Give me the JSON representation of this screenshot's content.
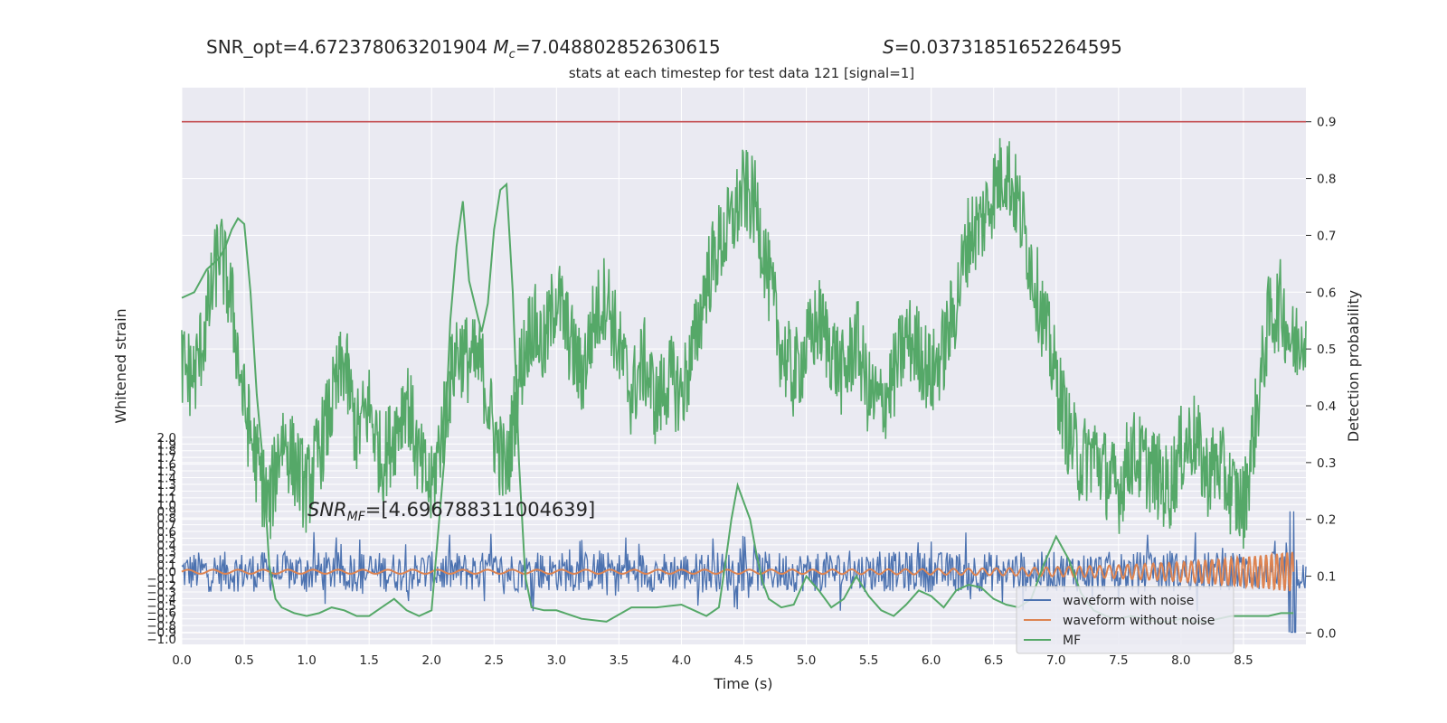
{
  "header": {
    "snr_opt": "SNR_opt=4.672378063201904",
    "mc": "M",
    "mc_sub": "c",
    "mc_value": "=7.048802852630615",
    "s": "S",
    "s_value": "=0.03731851652264595",
    "title": "stats at each timestep for test data 121 [signal=1]"
  },
  "annotation": {
    "snr_mf_prefix": "SNR",
    "snr_mf_sub": "MF",
    "snr_mf_value": "=[4.696788311004639]"
  },
  "chart_data": {
    "type": "line",
    "title": "stats at each timestep for test data 121 [signal=1]",
    "xlabel": "Time (s)",
    "ylabel_left": "Whitened strain",
    "ylabel_right": "Detection probability",
    "xlim": [
      0.0,
      9.0
    ],
    "ylim_left": [
      -1.08,
      7.2
    ],
    "ylim_right": [
      -0.02,
      0.96
    ],
    "x_ticks": [
      "0.0",
      "0.5",
      "1.0",
      "1.5",
      "2.0",
      "2.5",
      "3.0",
      "3.5",
      "4.0",
      "4.5",
      "5.0",
      "5.5",
      "6.0",
      "6.5",
      "7.0",
      "7.5",
      "8.0",
      "8.5"
    ],
    "y_ticks_left": [
      "2.0",
      "1.9",
      "1.8",
      "1.7",
      "1.6",
      "1.5",
      "1.4",
      "1.3",
      "1.2",
      "1.1",
      "1.0",
      "0.9",
      "0.8",
      "0.7",
      "0.6",
      "0.5",
      "0.4",
      "0.3",
      "0.2",
      "0.1",
      "0.0",
      "−0.1",
      "−0.2",
      "−0.3",
      "−0.4",
      "−0.5",
      "−0.6",
      "−0.7",
      "−0.8",
      "−0.9",
      "−1.0"
    ],
    "y_ticks_right": [
      "0.9",
      "0.8",
      "0.7",
      "0.6",
      "0.5",
      "0.4",
      "0.3",
      "0.2",
      "0.1",
      "0.0"
    ],
    "threshold": 0.9,
    "legend": {
      "placement": "lower-right",
      "entries": [
        "waveform with noise",
        "waveform without noise",
        "MF"
      ]
    },
    "colors": {
      "noise": "#4c72b0",
      "clean": "#dd8452",
      "mf": "#55a868",
      "threshold": "#c44e52",
      "background": "#eaeaf2",
      "grid": "#ffffff"
    },
    "series": [
      {
        "name": "waveform with noise",
        "axis": "left",
        "style": "noisy band",
        "typical_range": [
          -0.3,
          0.3
        ],
        "peak_range": [
          -0.65,
          0.6
        ]
      },
      {
        "name": "waveform without noise",
        "axis": "left",
        "style": "chirp",
        "values_note": "",
        "amplitude_start": 0.03,
        "amplitude_end": 0.3,
        "end_time": 8.9
      },
      {
        "name": "MF",
        "axis": "right",
        "style": "smooth",
        "x": [
          0.0,
          0.1,
          0.2,
          0.3,
          0.35,
          0.4,
          0.45,
          0.5,
          0.55,
          0.6,
          0.65,
          0.7,
          0.75,
          0.8,
          0.9,
          1.0,
          1.1,
          1.2,
          1.3,
          1.4,
          1.5,
          1.6,
          1.7,
          1.8,
          1.9,
          2.0,
          2.1,
          2.15,
          2.2,
          2.25,
          2.3,
          2.4,
          2.45,
          2.5,
          2.55,
          2.6,
          2.65,
          2.7,
          2.75,
          2.8,
          2.9,
          3.0,
          3.2,
          3.4,
          3.6,
          3.8,
          4.0,
          4.1,
          4.2,
          4.3,
          4.35,
          4.4,
          4.45,
          4.5,
          4.55,
          4.6,
          4.65,
          4.7,
          4.8,
          4.9,
          5.0,
          5.1,
          5.2,
          5.3,
          5.4,
          5.5,
          5.6,
          5.7,
          5.8,
          5.9,
          6.0,
          6.1,
          6.2,
          6.3,
          6.4,
          6.5,
          6.6,
          6.7,
          6.8,
          6.9,
          7.0,
          7.1,
          7.2,
          7.3,
          7.4,
          7.5,
          7.6,
          7.7,
          7.8,
          7.9,
          8.0,
          8.1,
          8.2,
          8.3,
          8.4,
          8.5,
          8.6,
          8.7,
          8.8,
          8.9
        ],
        "values": [
          0.59,
          0.6,
          0.64,
          0.66,
          0.68,
          0.71,
          0.73,
          0.72,
          0.6,
          0.42,
          0.3,
          0.12,
          0.06,
          0.045,
          0.035,
          0.03,
          0.035,
          0.045,
          0.04,
          0.03,
          0.03,
          0.045,
          0.06,
          0.04,
          0.03,
          0.04,
          0.3,
          0.55,
          0.68,
          0.76,
          0.62,
          0.53,
          0.58,
          0.71,
          0.78,
          0.79,
          0.6,
          0.3,
          0.1,
          0.045,
          0.04,
          0.04,
          0.025,
          0.02,
          0.045,
          0.045,
          0.05,
          0.04,
          0.03,
          0.045,
          0.12,
          0.2,
          0.26,
          0.23,
          0.2,
          0.14,
          0.09,
          0.06,
          0.045,
          0.05,
          0.1,
          0.075,
          0.045,
          0.06,
          0.1,
          0.065,
          0.04,
          0.03,
          0.05,
          0.075,
          0.065,
          0.045,
          0.075,
          0.085,
          0.08,
          0.06,
          0.05,
          0.045,
          0.06,
          0.12,
          0.17,
          0.13,
          0.07,
          0.04,
          0.03,
          0.025,
          0.03,
          0.025,
          0.02,
          0.02,
          0.025,
          0.02,
          0.02,
          0.025,
          0.03,
          0.03,
          0.03,
          0.03,
          0.035,
          0.035
        ]
      },
      {
        "name": "detection probability (untitled)",
        "axis": "right",
        "style": "noisy",
        "x": [
          0.0,
          0.1,
          0.2,
          0.3,
          0.4,
          0.5,
          0.6,
          0.7,
          0.8,
          0.9,
          1.0,
          1.1,
          1.2,
          1.3,
          1.4,
          1.5,
          1.6,
          1.7,
          1.8,
          1.9,
          2.0,
          2.1,
          2.2,
          2.3,
          2.4,
          2.5,
          2.6,
          2.7,
          2.8,
          2.9,
          3.0,
          3.1,
          3.2,
          3.3,
          3.4,
          3.5,
          3.6,
          3.7,
          3.8,
          3.9,
          4.0,
          4.1,
          4.2,
          4.3,
          4.4,
          4.5,
          4.6,
          4.7,
          4.8,
          4.9,
          5.0,
          5.1,
          5.2,
          5.3,
          5.4,
          5.5,
          5.6,
          5.7,
          5.8,
          5.9,
          6.0,
          6.1,
          6.2,
          6.3,
          6.4,
          6.5,
          6.6,
          6.7,
          6.8,
          6.9,
          7.0,
          7.1,
          7.2,
          7.3,
          7.4,
          7.5,
          7.6,
          7.7,
          7.8,
          7.9,
          8.0,
          8.1,
          8.2,
          8.3,
          8.4,
          8.5,
          8.6,
          8.7,
          8.8,
          8.9,
          9.0
        ],
        "values": [
          0.47,
          0.45,
          0.55,
          0.68,
          0.58,
          0.4,
          0.3,
          0.22,
          0.35,
          0.3,
          0.25,
          0.32,
          0.4,
          0.48,
          0.35,
          0.4,
          0.3,
          0.35,
          0.42,
          0.3,
          0.25,
          0.38,
          0.5,
          0.48,
          0.47,
          0.35,
          0.28,
          0.45,
          0.55,
          0.5,
          0.6,
          0.52,
          0.45,
          0.55,
          0.6,
          0.5,
          0.42,
          0.48,
          0.4,
          0.45,
          0.42,
          0.5,
          0.62,
          0.68,
          0.72,
          0.78,
          0.75,
          0.62,
          0.5,
          0.45,
          0.5,
          0.55,
          0.5,
          0.45,
          0.52,
          0.42,
          0.4,
          0.45,
          0.52,
          0.5,
          0.45,
          0.5,
          0.58,
          0.7,
          0.72,
          0.78,
          0.82,
          0.75,
          0.65,
          0.55,
          0.45,
          0.35,
          0.3,
          0.32,
          0.28,
          0.25,
          0.32,
          0.3,
          0.28,
          0.25,
          0.32,
          0.35,
          0.28,
          0.3,
          0.25,
          0.22,
          0.38,
          0.55,
          0.58,
          0.5,
          0.55
        ]
      }
    ]
  }
}
